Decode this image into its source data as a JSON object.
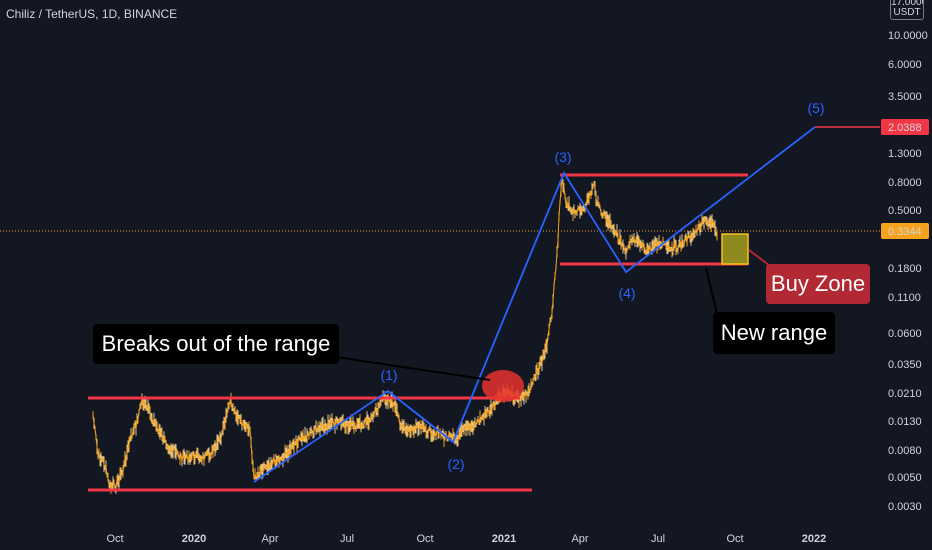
{
  "header": {
    "title": "Chiliz / TetherUS, 1D, BINANCE",
    "unit_top": "17.0000",
    "unit": "USDT"
  },
  "chart_data": {
    "type": "line",
    "scale": "log",
    "y_ticks": [
      "10.0000",
      "6.0000",
      "3.5000",
      "2.0388",
      "1.3000",
      "0.8000",
      "0.5000",
      "0.3344",
      "0.1800",
      "0.1100",
      "0.0600",
      "0.0350",
      "0.0210",
      "0.0130",
      "0.0080",
      "0.0050",
      "0.0030"
    ],
    "x_ticks": [
      {
        "label": "Oct",
        "bold": false
      },
      {
        "label": "2020",
        "bold": true
      },
      {
        "label": "Apr",
        "bold": false
      },
      {
        "label": "Jul",
        "bold": false
      },
      {
        "label": "Oct",
        "bold": false
      },
      {
        "label": "2021",
        "bold": true
      },
      {
        "label": "Apr",
        "bold": false
      },
      {
        "label": "Jul",
        "bold": false
      },
      {
        "label": "Oct",
        "bold": false
      },
      {
        "label": "2022",
        "bold": true
      }
    ],
    "price_labels": [
      {
        "value": "2.0388",
        "color": "#f23645"
      },
      {
        "value": "0.3344",
        "color": "#f7a21b"
      }
    ],
    "wave_labels": [
      "(1)",
      "(2)",
      "(3)",
      "(4)",
      "(5)"
    ],
    "annotations": [
      "Breaks out of the range",
      "New range",
      "Buy Zone"
    ],
    "colors": {
      "background": "#131722",
      "range_line": "#f23645",
      "wave_line": "#2962ff",
      "price": "#f7a21b",
      "buy_zone_fill": "#8f8a1f",
      "buy_zone_border": "#f7c21b",
      "callout_dark": "#000000",
      "callout_red": "#b22833"
    }
  }
}
